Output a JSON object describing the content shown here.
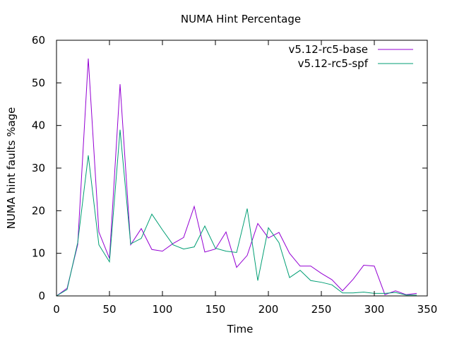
{
  "chart_data": {
    "type": "line",
    "title": "NUMA Hint Percentage",
    "xlabel": "Time",
    "ylabel": "NUMA hint faults %age",
    "xlim": [
      0,
      350
    ],
    "ylim": [
      0,
      60
    ],
    "xticks": [
      0,
      50,
      100,
      150,
      200,
      250,
      300,
      350
    ],
    "yticks": [
      0,
      10,
      20,
      30,
      40,
      50,
      60
    ],
    "grid": false,
    "legend_position": "top-right",
    "x": [
      0,
      10,
      20,
      30,
      40,
      50,
      60,
      70,
      80,
      90,
      100,
      110,
      120,
      130,
      140,
      150,
      160,
      170,
      180,
      190,
      200,
      210,
      220,
      230,
      240,
      250,
      260,
      270,
      280,
      290,
      300,
      310,
      320,
      330,
      340
    ],
    "series": [
      {
        "name": "v5.12-rc5-base",
        "color": "#9400d3",
        "values": [
          0,
          1.8,
          12,
          55.7,
          15,
          8.8,
          49.7,
          12,
          15.8,
          10.9,
          10.5,
          12.3,
          13.7,
          21,
          10.3,
          11,
          15,
          6.7,
          9.5,
          17,
          13.6,
          14.9,
          10,
          7,
          7,
          5.3,
          3.8,
          1.2,
          3.9,
          7.2,
          7,
          0.3,
          1.2,
          0.3,
          0.6
        ]
      },
      {
        "name": "v5.12-rc5-spf",
        "color": "#009e73",
        "values": [
          0,
          1.5,
          12.5,
          33,
          12,
          8,
          39,
          12.2,
          13.5,
          19.2,
          15.5,
          12,
          11,
          11.5,
          16.4,
          11.2,
          10.5,
          10.2,
          20.5,
          3.6,
          16,
          12.5,
          4.3,
          6,
          3.6,
          3.2,
          2.6,
          0.7,
          0.7,
          0.9,
          0.6,
          0.6,
          0.8,
          0.2,
          0.2
        ]
      }
    ]
  }
}
